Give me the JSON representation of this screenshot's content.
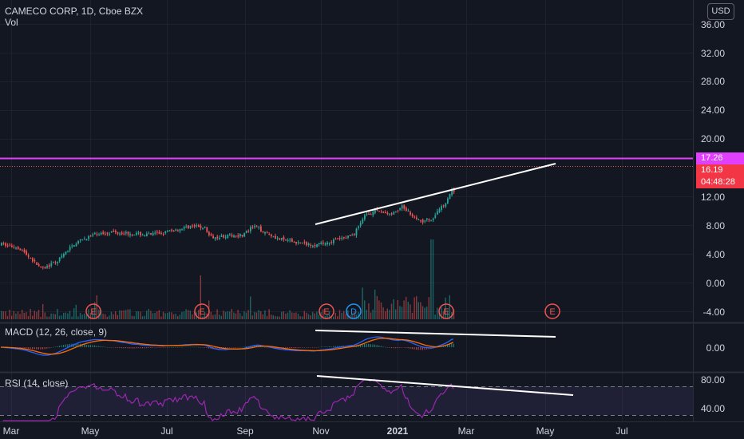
{
  "header": {
    "title": "CAMECO CORP, 1D, Cboe BZX",
    "volume_label": "Vol",
    "currency": "USD"
  },
  "price_axis": {
    "labels": [
      "36.00",
      "32.00",
      "28.00",
      "24.00",
      "20.00",
      "12.00",
      "8.00",
      "4.00",
      "0.00",
      "-4.00"
    ]
  },
  "price_tags": {
    "horizontal_line": "17.26",
    "last_price": "16.19",
    "countdown": "04:48:28"
  },
  "macd": {
    "title": "MACD (12, 26, close, 9)",
    "axis_labels": [
      "0.00"
    ]
  },
  "rsi": {
    "title": "RSI (14, close)",
    "axis_labels": [
      "80.00",
      "40.00"
    ]
  },
  "time_axis": {
    "labels": [
      "Mar",
      "May",
      "Jul",
      "Sep",
      "Nov",
      "2021",
      "Mar",
      "May",
      "Jul"
    ]
  },
  "events": [
    "E",
    "E",
    "E",
    "D",
    "E",
    "E"
  ],
  "colors": {
    "background": "#131722",
    "up": "#26a69a",
    "down": "#ef5350",
    "hline": "#e040fb",
    "macd_line": "#2962ff",
    "signal_line": "#ff6d00",
    "rsi_line": "#9c27b0",
    "trendline": "#ffffff"
  },
  "chart_data": {
    "type": "candlestick",
    "title": "CAMECO CORP, 1D, Cboe BZX",
    "ylim": [
      -4,
      36
    ],
    "horizontal_line": 17.26,
    "last_price": 16.19,
    "price_path": [
      {
        "t": "2020-02-15",
        "p": 9.5
      },
      {
        "t": "2020-03-01",
        "p": 9.0
      },
      {
        "t": "2020-03-10",
        "p": 7.6
      },
      {
        "t": "2020-03-20",
        "p": 6.0
      },
      {
        "t": "2020-04-01",
        "p": 7.0
      },
      {
        "t": "2020-04-15",
        "p": 9.5
      },
      {
        "t": "2020-05-01",
        "p": 10.8
      },
      {
        "t": "2020-05-15",
        "p": 11.2
      },
      {
        "t": "2020-06-01",
        "p": 11.0
      },
      {
        "t": "2020-06-15",
        "p": 10.8
      },
      {
        "t": "2020-07-01",
        "p": 11.2
      },
      {
        "t": "2020-07-20",
        "p": 12.0
      },
      {
        "t": "2020-08-01",
        "p": 11.8
      },
      {
        "t": "2020-08-05",
        "p": 10.5
      },
      {
        "t": "2020-09-01",
        "p": 10.8
      },
      {
        "t": "2020-09-10",
        "p": 12.0
      },
      {
        "t": "2020-10-01",
        "p": 10.2
      },
      {
        "t": "2020-10-20",
        "p": 9.6
      },
      {
        "t": "2020-11-01",
        "p": 9.4
      },
      {
        "t": "2020-11-15",
        "p": 10.0
      },
      {
        "t": "2020-12-01",
        "p": 10.8
      },
      {
        "t": "2020-12-10",
        "p": 13.5
      },
      {
        "t": "2020-12-20",
        "p": 14.2
      },
      {
        "t": "2021-01-01",
        "p": 13.6
      },
      {
        "t": "2021-01-10",
        "p": 14.8
      },
      {
        "t": "2021-01-25",
        "p": 12.6
      },
      {
        "t": "2021-02-05",
        "p": 13.2
      },
      {
        "t": "2021-02-15",
        "p": 15.5
      },
      {
        "t": "2021-02-20",
        "p": 17.2
      },
      {
        "t": "2021-02-23",
        "p": 16.19
      }
    ]
  }
}
